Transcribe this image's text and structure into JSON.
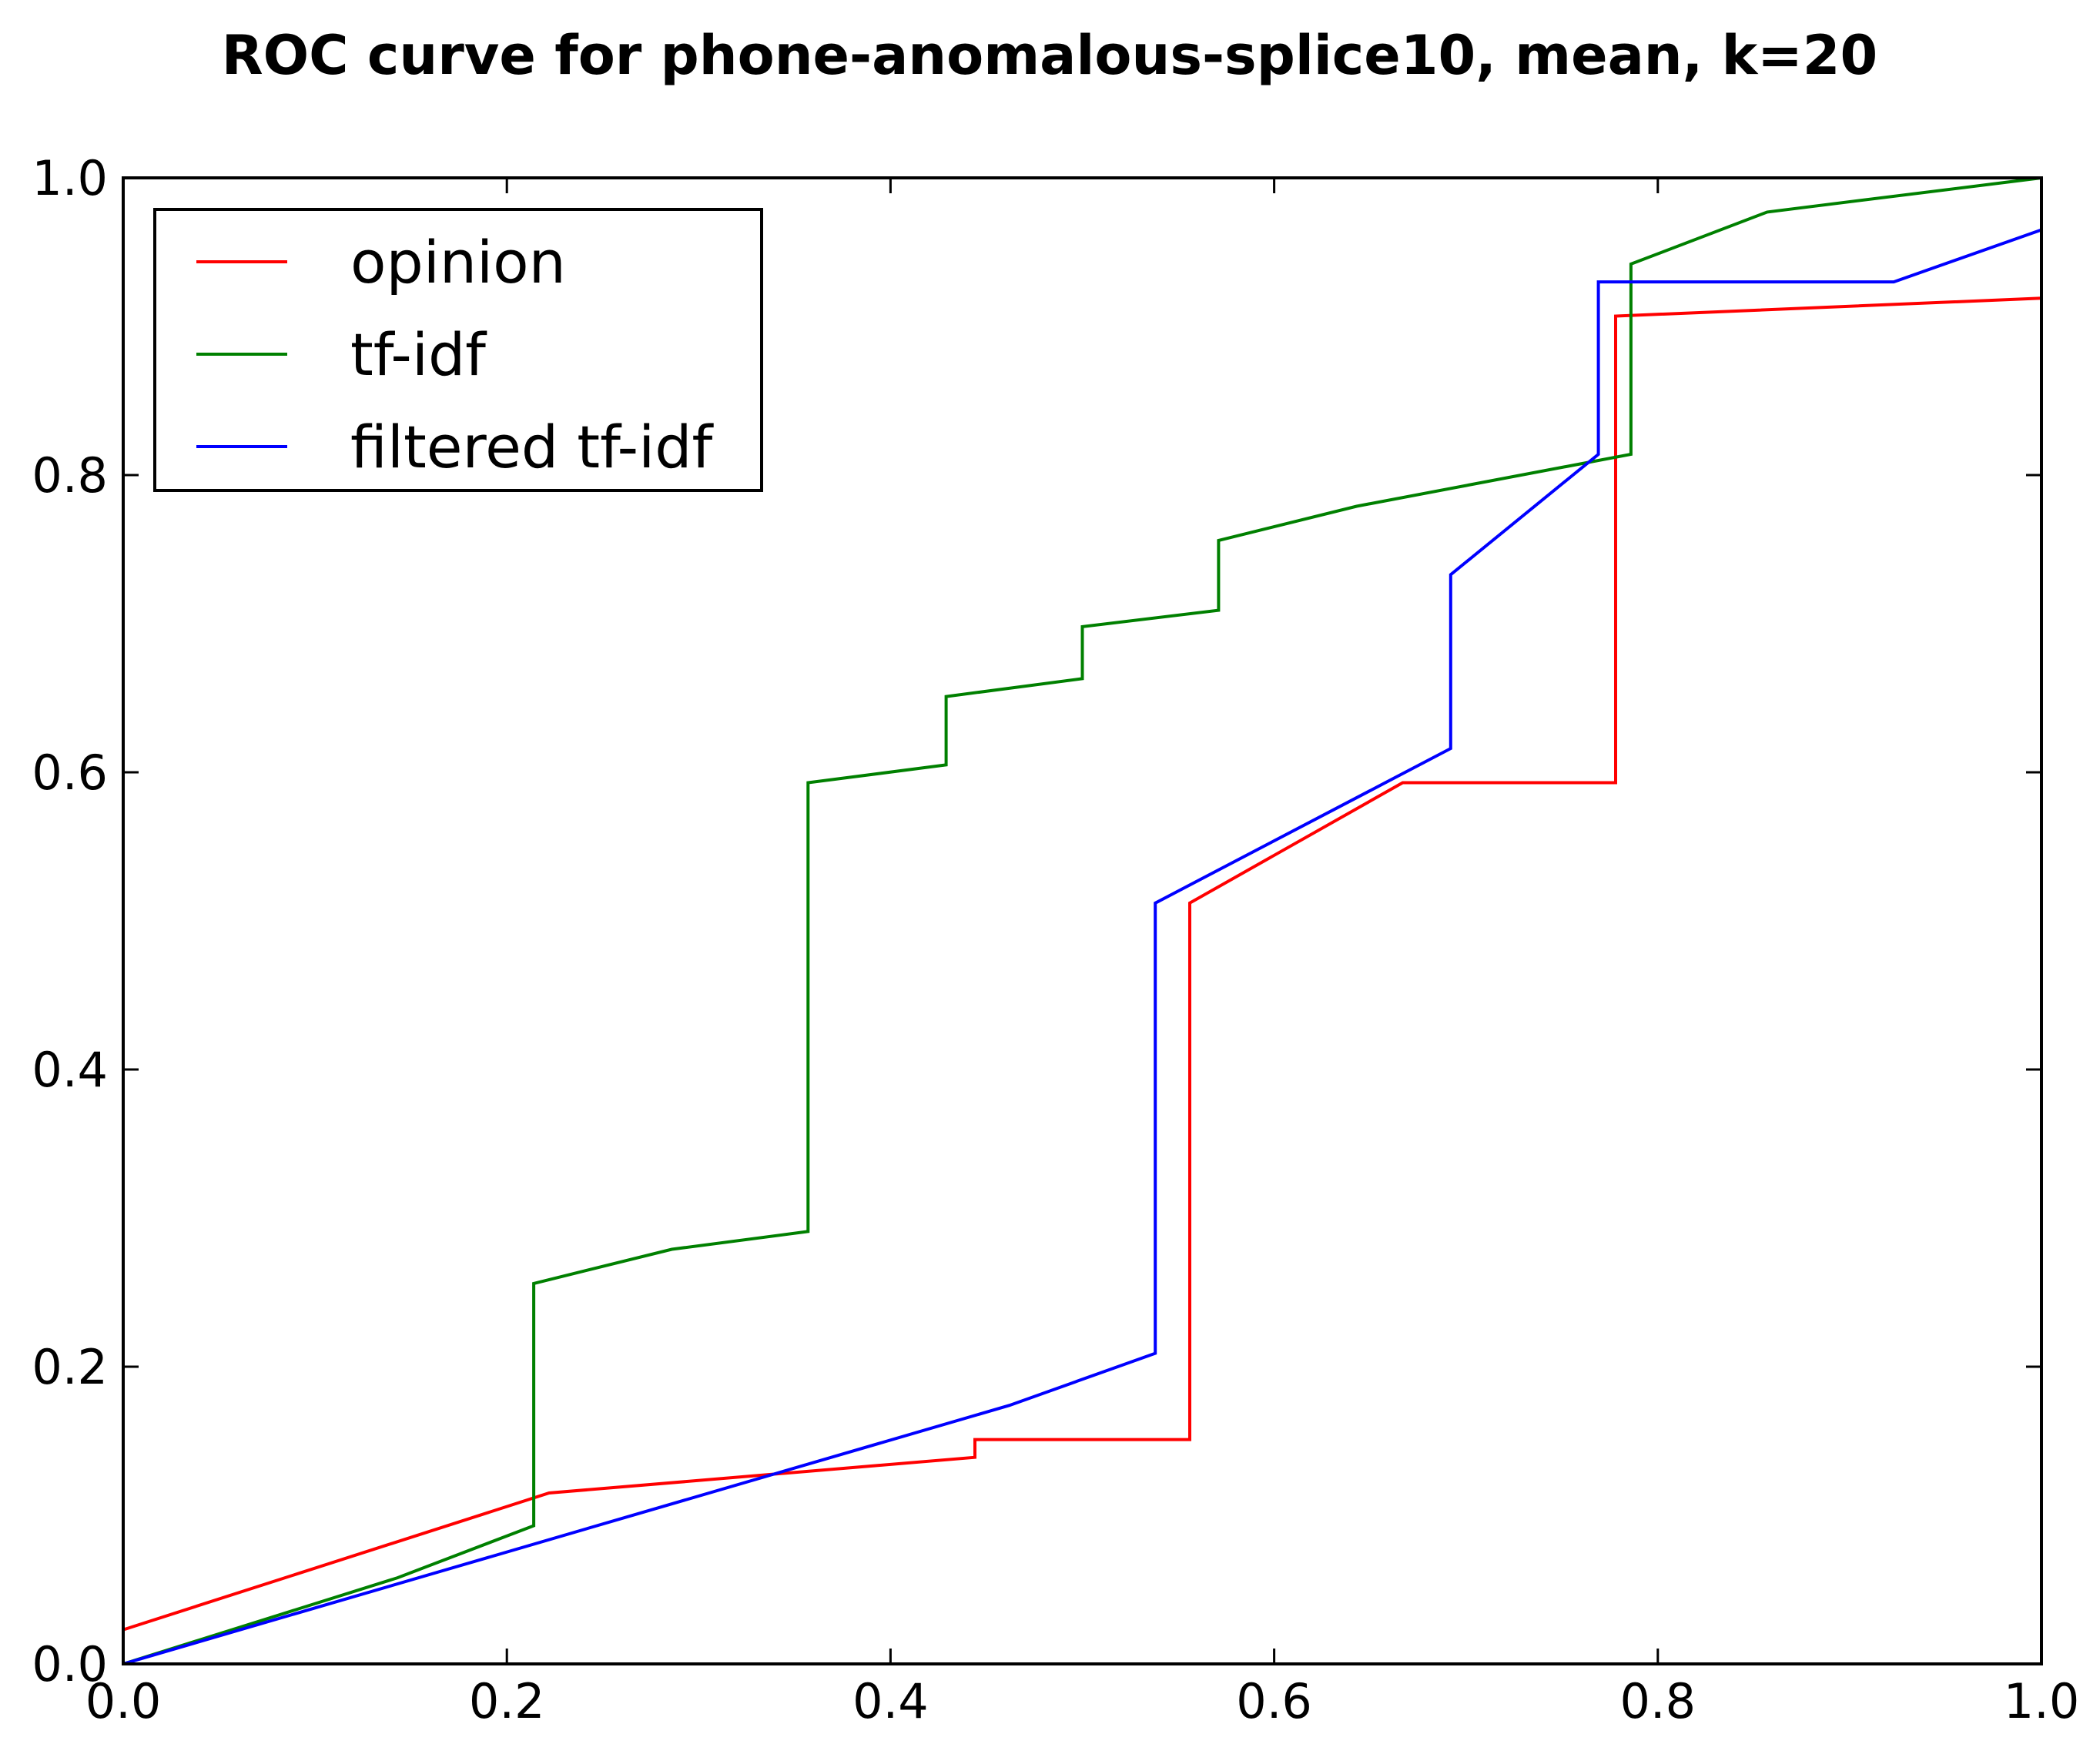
{
  "chart_data": {
    "type": "line",
    "title": "ROC curve for phone-anomalous-splice10, mean, k=20",
    "xlabel": "",
    "ylabel": "",
    "xlim": [
      0.0,
      1.0
    ],
    "ylim": [
      0.0,
      1.0
    ],
    "xticks": [
      "0.0",
      "0.2",
      "0.4",
      "0.6",
      "0.8",
      "1.0"
    ],
    "yticks": [
      "0.0",
      "0.2",
      "0.4",
      "0.6",
      "0.8",
      "1.0"
    ],
    "grid": false,
    "legend_position": "top-left",
    "series": [
      {
        "name": "opinion",
        "color": "#ff0000",
        "points": [
          [
            0.0,
            0.023
          ],
          [
            0.222,
            0.115
          ],
          [
            0.444,
            0.139
          ],
          [
            0.444,
            0.151
          ],
          [
            0.556,
            0.151
          ],
          [
            0.556,
            0.512
          ],
          [
            0.667,
            0.593
          ],
          [
            0.778,
            0.593
          ],
          [
            0.778,
            0.907
          ],
          [
            1.0,
            0.919
          ]
        ]
      },
      {
        "name": "tf-idf",
        "color": "#008000",
        "points": [
          [
            0.0,
            0.0
          ],
          [
            0.143,
            0.058
          ],
          [
            0.214,
            0.093
          ],
          [
            0.214,
            0.256
          ],
          [
            0.286,
            0.279
          ],
          [
            0.357,
            0.291
          ],
          [
            0.357,
            0.593
          ],
          [
            0.429,
            0.605
          ],
          [
            0.429,
            0.651
          ],
          [
            0.5,
            0.663
          ],
          [
            0.5,
            0.698
          ],
          [
            0.571,
            0.709
          ],
          [
            0.571,
            0.756
          ],
          [
            0.643,
            0.779
          ],
          [
            0.786,
            0.814
          ],
          [
            0.786,
            0.942
          ],
          [
            0.857,
            0.977
          ],
          [
            1.0,
            1.0
          ]
        ]
      },
      {
        "name": "filtered tf-idf",
        "color": "#0000ff",
        "points": [
          [
            0.0,
            0.0
          ],
          [
            0.462,
            0.174
          ],
          [
            0.538,
            0.209
          ],
          [
            0.538,
            0.512
          ],
          [
            0.692,
            0.616
          ],
          [
            0.692,
            0.733
          ],
          [
            0.769,
            0.814
          ],
          [
            0.769,
            0.93
          ],
          [
            0.923,
            0.93
          ],
          [
            1.0,
            0.965
          ]
        ]
      }
    ]
  }
}
